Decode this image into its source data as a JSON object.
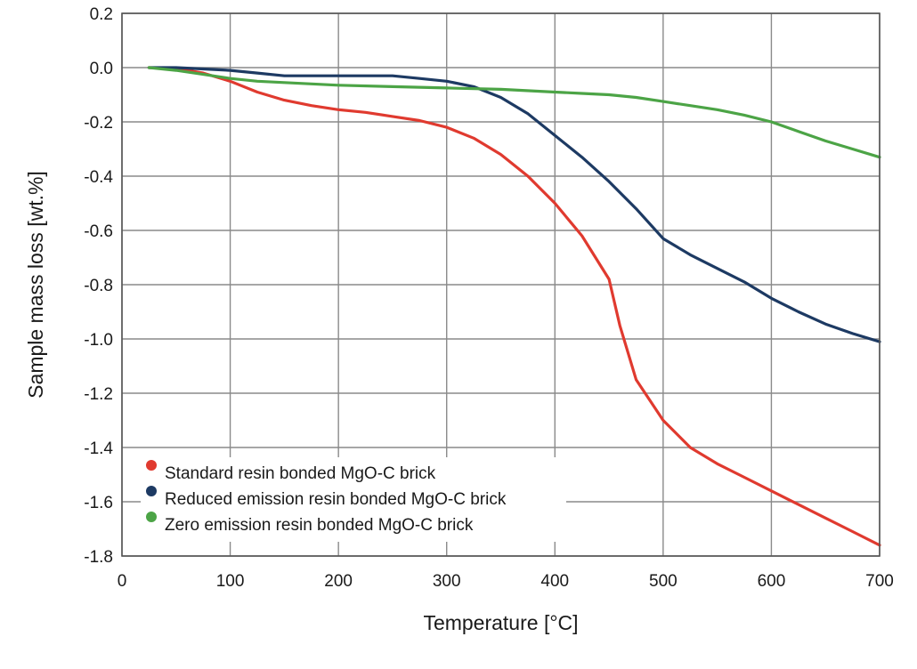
{
  "chart_data": {
    "type": "line",
    "xlabel": "Temperature [°C]",
    "ylabel": "Sample mass loss [wt.%]",
    "xlim": [
      0,
      700
    ],
    "ylim": [
      -1.8,
      0.2
    ],
    "x_ticks": [
      0,
      100,
      200,
      300,
      400,
      500,
      600,
      700
    ],
    "x_tick_labels": [
      "0",
      "100",
      "200",
      "300",
      "400",
      "500",
      "600",
      "700"
    ],
    "y_ticks": [
      0.2,
      0.0,
      -0.2,
      -0.4,
      -0.6,
      -0.8,
      -1.0,
      -1.2,
      -1.4,
      -1.6,
      -1.8
    ],
    "y_tick_labels": [
      "0.2",
      "0.0",
      "-0.2",
      "-0.4",
      "-0.6",
      "-0.8",
      "-1.0",
      "-1.2",
      "-1.4",
      "-1.6",
      "-1.8"
    ],
    "grid": true,
    "legend_position": "bottom-left",
    "series": [
      {
        "name": "Standard resin bonded MgO-C brick",
        "color": "#e03a2f",
        "points": [
          [
            25,
            0.0
          ],
          [
            50,
            -0.003
          ],
          [
            75,
            -0.02
          ],
          [
            100,
            -0.05
          ],
          [
            125,
            -0.09
          ],
          [
            150,
            -0.12
          ],
          [
            175,
            -0.14
          ],
          [
            200,
            -0.155
          ],
          [
            225,
            -0.165
          ],
          [
            250,
            -0.18
          ],
          [
            275,
            -0.195
          ],
          [
            300,
            -0.22
          ],
          [
            325,
            -0.26
          ],
          [
            350,
            -0.32
          ],
          [
            375,
            -0.4
          ],
          [
            400,
            -0.5
          ],
          [
            425,
            -0.62
          ],
          [
            450,
            -0.78
          ],
          [
            460,
            -0.95
          ],
          [
            475,
            -1.15
          ],
          [
            500,
            -1.3
          ],
          [
            525,
            -1.4
          ],
          [
            550,
            -1.46
          ],
          [
            575,
            -1.51
          ],
          [
            600,
            -1.56
          ],
          [
            625,
            -1.61
          ],
          [
            650,
            -1.66
          ],
          [
            675,
            -1.71
          ],
          [
            700,
            -1.76
          ]
        ]
      },
      {
        "name": "Reduced emission resin bonded MgO-C brick",
        "color": "#1d3a63",
        "points": [
          [
            25,
            0.0
          ],
          [
            50,
            0.0
          ],
          [
            75,
            -0.005
          ],
          [
            100,
            -0.01
          ],
          [
            125,
            -0.02
          ],
          [
            150,
            -0.03
          ],
          [
            200,
            -0.03
          ],
          [
            250,
            -0.03
          ],
          [
            275,
            -0.04
          ],
          [
            300,
            -0.05
          ],
          [
            325,
            -0.07
          ],
          [
            350,
            -0.11
          ],
          [
            375,
            -0.17
          ],
          [
            400,
            -0.25
          ],
          [
            425,
            -0.33
          ],
          [
            450,
            -0.42
          ],
          [
            475,
            -0.52
          ],
          [
            500,
            -0.63
          ],
          [
            525,
            -0.69
          ],
          [
            550,
            -0.74
          ],
          [
            575,
            -0.79
          ],
          [
            600,
            -0.85
          ],
          [
            625,
            -0.9
          ],
          [
            650,
            -0.945
          ],
          [
            675,
            -0.98
          ],
          [
            700,
            -1.01
          ]
        ]
      },
      {
        "name": "Zero emission resin bonded MgO-C brick",
        "color": "#4ca446",
        "points": [
          [
            25,
            0.0
          ],
          [
            50,
            -0.01
          ],
          [
            75,
            -0.025
          ],
          [
            100,
            -0.04
          ],
          [
            125,
            -0.05
          ],
          [
            150,
            -0.055
          ],
          [
            175,
            -0.06
          ],
          [
            200,
            -0.065
          ],
          [
            250,
            -0.07
          ],
          [
            300,
            -0.075
          ],
          [
            350,
            -0.08
          ],
          [
            400,
            -0.09
          ],
          [
            425,
            -0.095
          ],
          [
            450,
            -0.1
          ],
          [
            475,
            -0.11
          ],
          [
            500,
            -0.125
          ],
          [
            525,
            -0.14
          ],
          [
            550,
            -0.155
          ],
          [
            575,
            -0.175
          ],
          [
            600,
            -0.2
          ],
          [
            625,
            -0.235
          ],
          [
            650,
            -0.27
          ],
          [
            675,
            -0.3
          ],
          [
            700,
            -0.33
          ]
        ]
      }
    ]
  }
}
